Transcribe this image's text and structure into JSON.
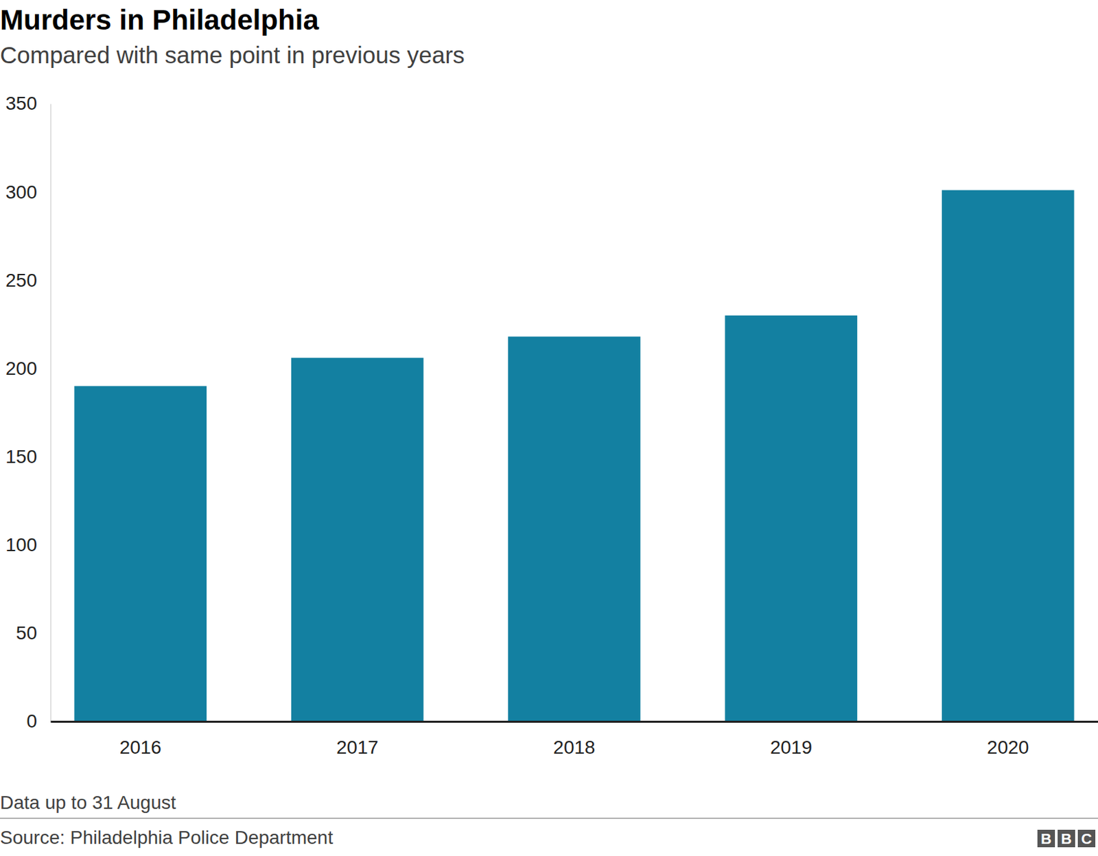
{
  "chart_data": {
    "type": "bar",
    "title": "Murders in Philadelphia",
    "subtitle": "Compared with same point in previous years",
    "categories": [
      "2016",
      "2017",
      "2018",
      "2019",
      "2020"
    ],
    "values": [
      190,
      206,
      218,
      230,
      301
    ],
    "color": "#1380a1",
    "ylim": [
      0,
      350
    ],
    "yticks": [
      0,
      50,
      100,
      150,
      200,
      250,
      300,
      350
    ],
    "grid": false,
    "footnote": "Data up to 31 August",
    "source": "Source: Philadelphia Police Department",
    "credit": "BBC"
  }
}
